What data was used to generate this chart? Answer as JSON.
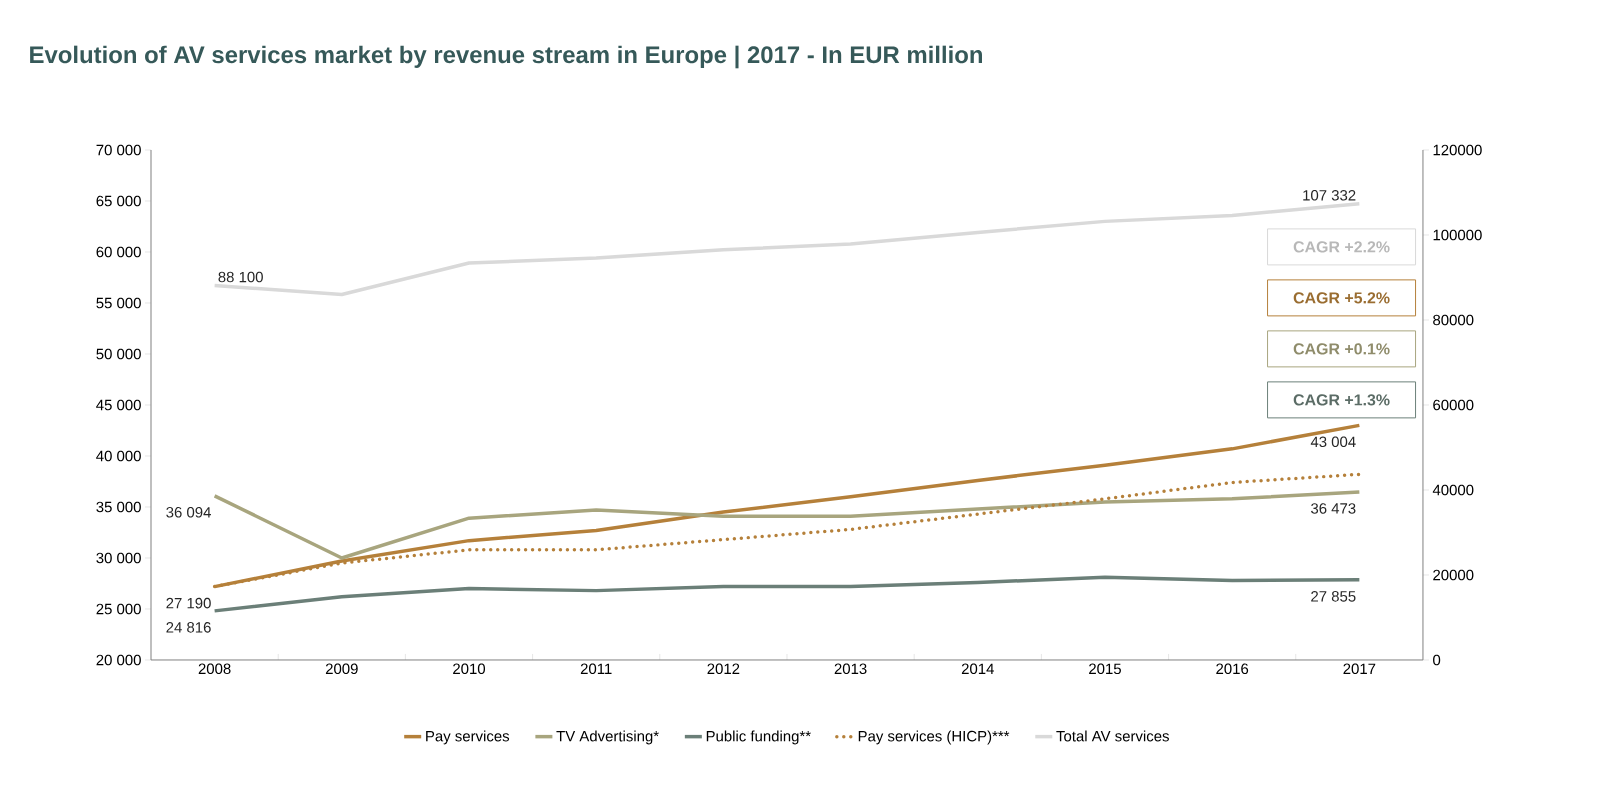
{
  "chart_data": {
    "type": "line",
    "title": "Evolution of AV services market by revenue stream in Europe | 2017 - In EUR million",
    "categories": [
      "2008",
      "2009",
      "2010",
      "2011",
      "2012",
      "2013",
      "2014",
      "2015",
      "2016",
      "2017"
    ],
    "series": [
      {
        "name": "Pay services",
        "color": "#b5803a",
        "line_style": "solid",
        "values": [
          27190,
          29700,
          31700,
          32700,
          34500,
          36000,
          37600,
          39100,
          40700,
          43004
        ],
        "value_labels": [
          "27 190",
          null,
          null,
          null,
          null,
          null,
          null,
          null,
          null,
          "43 004"
        ]
      },
      {
        "name": "TV Advertising*",
        "color": "#a8a57e",
        "line_style": "solid",
        "values": [
          36094,
          30000,
          33900,
          34700,
          34100,
          34100,
          34800,
          35500,
          35800,
          36473
        ],
        "value_labels": [
          "36 094",
          null,
          null,
          null,
          null,
          null,
          null,
          null,
          null,
          "36 473"
        ]
      },
      {
        "name": "Public funding**",
        "color": "#6b7f78",
        "line_style": "solid",
        "values": [
          24816,
          26200,
          27000,
          26800,
          27200,
          27200,
          27600,
          28100,
          27800,
          27855
        ],
        "value_labels": [
          "24 816",
          null,
          null,
          null,
          null,
          null,
          null,
          null,
          null,
          "27 855"
        ]
      },
      {
        "name": "Pay services (HICP)***",
        "color": "#b5803a",
        "line_style": "dotted",
        "values": [
          27200,
          29500,
          30800,
          30800,
          31800,
          32800,
          34300,
          35800,
          37400,
          38200
        ]
      },
      {
        "name": "Total AV services",
        "color": "#d9d9d9",
        "line_style": "solid",
        "axis": "y2",
        "values": [
          88100,
          86000,
          93400,
          94600,
          96500,
          97900,
          100600,
          103200,
          104600,
          107332
        ],
        "value_labels": [
          "88 100",
          null,
          null,
          null,
          null,
          null,
          null,
          null,
          null,
          "107 332"
        ]
      }
    ],
    "ylim": [
      20000,
      70000
    ],
    "yticks": [
      {
        "value": 20000,
        "label": "20 000"
      },
      {
        "value": 25000,
        "label": "25 000"
      },
      {
        "value": 30000,
        "label": "30 000"
      },
      {
        "value": 35000,
        "label": "35 000"
      },
      {
        "value": 40000,
        "label": "40 000"
      },
      {
        "value": 45000,
        "label": "45 000"
      },
      {
        "value": 50000,
        "label": "50 000"
      },
      {
        "value": 55000,
        "label": "55 000"
      },
      {
        "value": 60000,
        "label": "60 000"
      },
      {
        "value": 65000,
        "label": "65 000"
      },
      {
        "value": 70000,
        "label": "70 000"
      }
    ],
    "y2lim": [
      0,
      120000
    ],
    "y2ticks": [
      0,
      20000,
      40000,
      60000,
      80000,
      100000,
      120000
    ],
    "annotations": [
      "CAGR +2.2%",
      "CAGR +5.2%",
      "CAGR +0.1%",
      "CAGR +1.3%"
    ],
    "grid": false,
    "legend": "bottom"
  }
}
